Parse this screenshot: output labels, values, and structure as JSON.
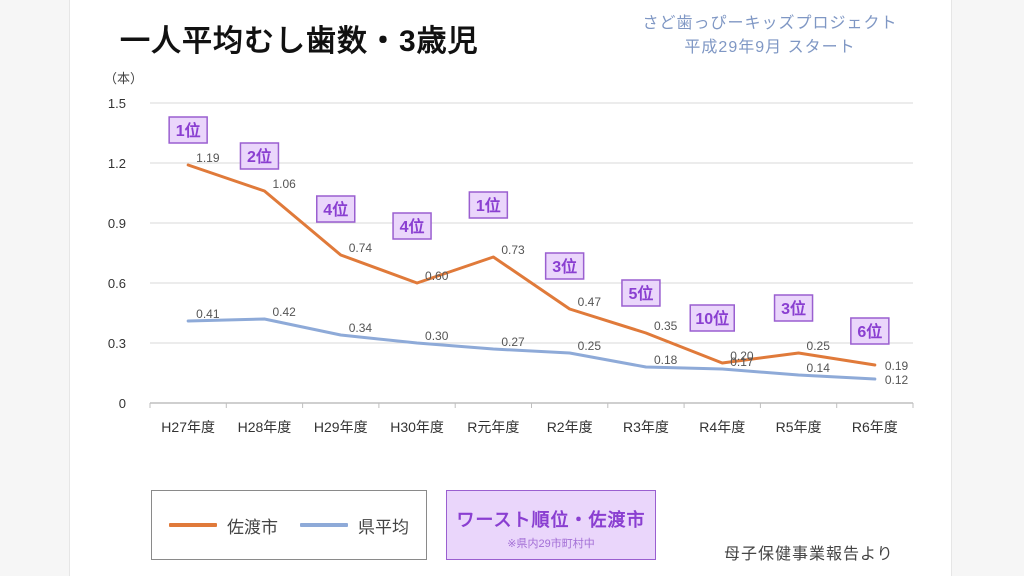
{
  "page": {
    "title": "一人平均むし歯数・3歳児",
    "project_line1": "さど歯っぴーキッズプロジェクト",
    "project_line2": "平成29年9月 スタート",
    "unit_label": "（本）",
    "source": "母子保健事業報告より"
  },
  "legend": {
    "items": [
      {
        "label": "佐渡市",
        "color": "#e07a3a"
      },
      {
        "label": "県平均",
        "color": "#8eaad8"
      }
    ]
  },
  "worst_box": {
    "title": "ワースト順位・佐渡市",
    "subtitle": "※県内29市町村中"
  },
  "colors": {
    "sado": "#e07a3a",
    "pref": "#8eaad8",
    "rank_fill": "#ead6fb",
    "rank_border": "#9a5fd0",
    "rank_text": "#8a3fd1",
    "grid": "#d9d9d9"
  },
  "chart_data": {
    "type": "line",
    "title": "一人平均むし歯数・3歳児",
    "xlabel": "",
    "ylabel": "（本）",
    "ylim": [
      0,
      1.5
    ],
    "yticks": [
      0,
      0.3,
      0.6,
      0.9,
      1.2,
      1.5
    ],
    "ytick_labels": [
      "0",
      "0.3",
      "0.6",
      "0.9",
      "1.2",
      "1.5"
    ],
    "grid": true,
    "legend_position": "bottom-left",
    "categories": [
      "H27年度",
      "H28年度",
      "H29年度",
      "H30年度",
      "R元年度",
      "R2年度",
      "R3年度",
      "R4年度",
      "R5年度",
      "R6年度"
    ],
    "series": [
      {
        "name": "佐渡市",
        "values": [
          1.19,
          1.06,
          0.74,
          0.6,
          0.73,
          0.47,
          0.35,
          0.2,
          0.25,
          0.19
        ],
        "labels": [
          "1.19",
          "1.06",
          "0.74",
          "0.60",
          "0.73",
          "0.47",
          "0.35",
          "0.20",
          "0.25",
          "0.19"
        ]
      },
      {
        "name": "県平均",
        "values": [
          0.41,
          0.42,
          0.34,
          0.3,
          0.27,
          0.25,
          0.18,
          0.17,
          0.14,
          0.12
        ],
        "labels": [
          "0.41",
          "0.42",
          "0.34",
          "0.30",
          "0.27",
          "0.25",
          "0.18",
          "0.17",
          "0.14",
          "0.12"
        ]
      }
    ],
    "annotations": {
      "name": "ワースト順位・佐渡市（県内29市町村中）",
      "ranks": [
        "1位",
        "2位",
        "4位",
        "4位",
        "1位",
        "3位",
        "5位",
        "10位",
        "3位",
        "6位"
      ]
    }
  }
}
